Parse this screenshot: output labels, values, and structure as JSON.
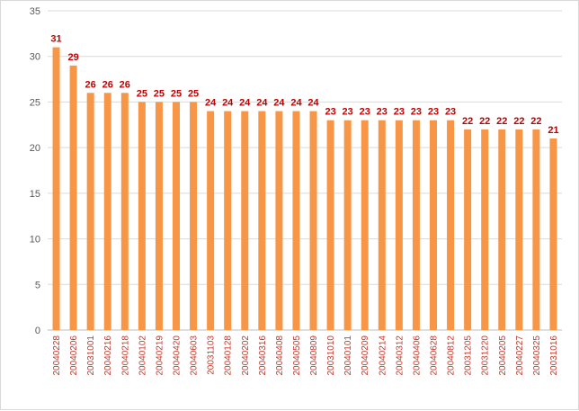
{
  "chart_data": {
    "type": "bar",
    "title": "",
    "xlabel": "",
    "ylabel": "",
    "ylim": [
      0,
      35
    ],
    "yticks": [
      0,
      5,
      10,
      15,
      20,
      25,
      30,
      35
    ],
    "grid": "horizontal",
    "legend": "none",
    "bar_color": "#f79646",
    "data_label_color": "#c00000",
    "tick_label_color": "#c0392b",
    "categories": [
      "20040228",
      "20040206",
      "20031001",
      "20040216",
      "20040218",
      "20040102",
      "20040219",
      "20040420",
      "20040603",
      "20031103",
      "20040128",
      "20040202",
      "20040316",
      "20040408",
      "20040505",
      "20040809",
      "20031010",
      "20040101",
      "20040209",
      "20040214",
      "20040312",
      "20040406",
      "20040628",
      "20040812",
      "20031205",
      "20031220",
      "20040205",
      "20040227",
      "20040325",
      "20031016"
    ],
    "values": [
      31,
      29,
      26,
      26,
      26,
      25,
      25,
      25,
      25,
      24,
      24,
      24,
      24,
      24,
      24,
      24,
      23,
      23,
      23,
      23,
      23,
      23,
      23,
      23,
      22,
      22,
      22,
      22,
      22,
      21
    ]
  }
}
